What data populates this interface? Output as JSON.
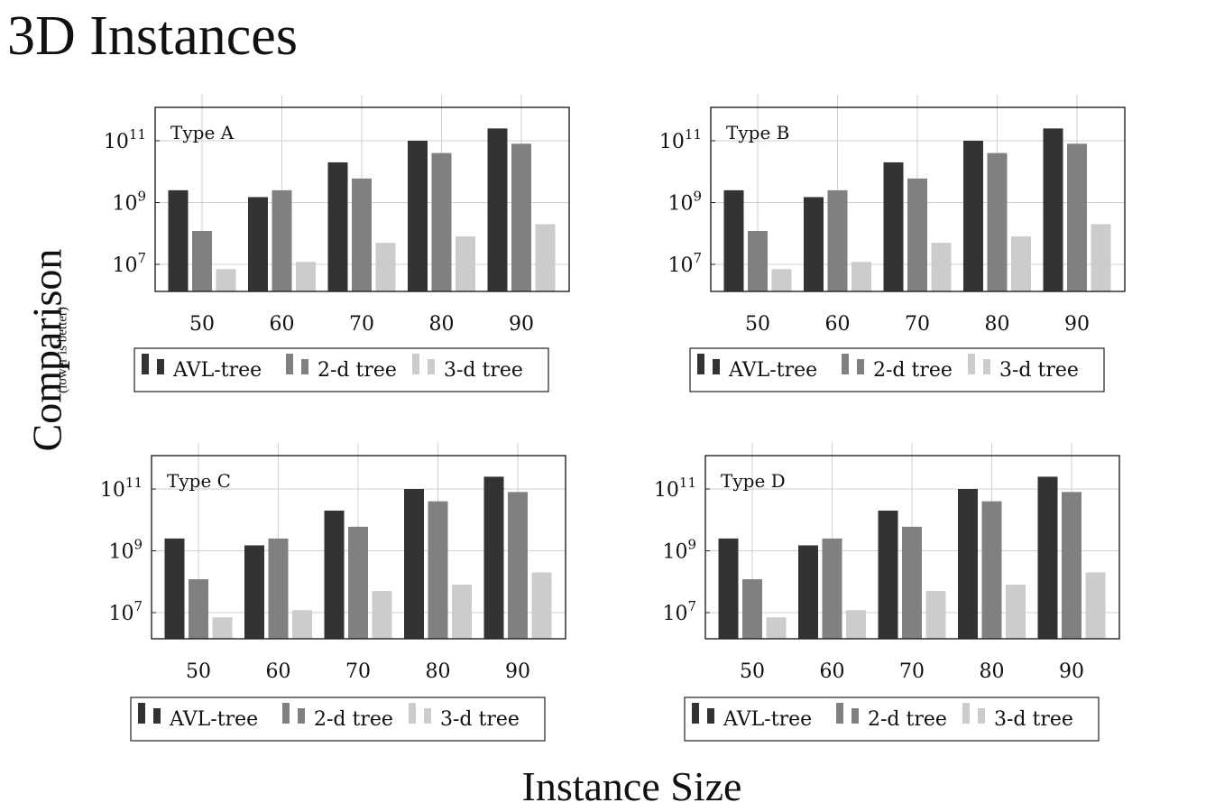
{
  "page": {
    "title": "3D Instances",
    "ylabel": "Comparison",
    "ylabel_note": "(lower is better)",
    "xlabel": "Instance Size"
  },
  "colors": {
    "AVL-tree": "#333333",
    "2-d tree": "#808080",
    "3-d tree": "#cccccc",
    "grid": "#cfcfcf",
    "frame": "#222222"
  },
  "chart_data": [
    {
      "type": "bar",
      "title": "Type A",
      "categories": [
        "50",
        "60",
        "70",
        "80",
        "90"
      ],
      "series": [
        {
          "name": "AVL-tree",
          "values": [
            2500000000.0,
            1500000000.0,
            20000000000.0,
            100000000000.0,
            250000000000.0
          ]
        },
        {
          "name": "2-d tree",
          "values": [
            120000000.0,
            2500000000.0,
            6000000000.0,
            40000000000.0,
            80000000000.0
          ]
        },
        {
          "name": "3-d tree",
          "values": [
            7000000.0,
            12000000.0,
            50000000.0,
            80000000.0,
            200000000.0
          ]
        }
      ],
      "yscale": "log",
      "ytick_labels": [
        "10^7",
        "10^9",
        "10^11"
      ],
      "grid": true,
      "legend": "below"
    },
    {
      "type": "bar",
      "title": "Type B",
      "categories": [
        "50",
        "60",
        "70",
        "80",
        "90"
      ],
      "series": [
        {
          "name": "AVL-tree",
          "values": [
            2500000000.0,
            1500000000.0,
            20000000000.0,
            100000000000.0,
            250000000000.0
          ]
        },
        {
          "name": "2-d tree",
          "values": [
            120000000.0,
            2500000000.0,
            6000000000.0,
            40000000000.0,
            80000000000.0
          ]
        },
        {
          "name": "3-d tree",
          "values": [
            7000000.0,
            12000000.0,
            50000000.0,
            80000000.0,
            200000000.0
          ]
        }
      ],
      "yscale": "log",
      "ytick_labels": [
        "10^7",
        "10^9",
        "10^11"
      ],
      "grid": true,
      "legend": "below"
    },
    {
      "type": "bar",
      "title": "Type C",
      "categories": [
        "50",
        "60",
        "70",
        "80",
        "90"
      ],
      "series": [
        {
          "name": "AVL-tree",
          "values": [
            2500000000.0,
            1500000000.0,
            20000000000.0,
            100000000000.0,
            250000000000.0
          ]
        },
        {
          "name": "2-d tree",
          "values": [
            120000000.0,
            2500000000.0,
            6000000000.0,
            40000000000.0,
            80000000000.0
          ]
        },
        {
          "name": "3-d tree",
          "values": [
            7000000.0,
            12000000.0,
            50000000.0,
            80000000.0,
            200000000.0
          ]
        }
      ],
      "yscale": "log",
      "ytick_labels": [
        "10^7",
        "10^9",
        "10^11"
      ],
      "grid": true,
      "legend": "below"
    },
    {
      "type": "bar",
      "title": "Type D",
      "categories": [
        "50",
        "60",
        "70",
        "80",
        "90"
      ],
      "series": [
        {
          "name": "AVL-tree",
          "values": [
            2500000000.0,
            1500000000.0,
            20000000000.0,
            100000000000.0,
            250000000000.0
          ]
        },
        {
          "name": "2-d tree",
          "values": [
            120000000.0,
            2500000000.0,
            6000000000.0,
            40000000000.0,
            80000000000.0
          ]
        },
        {
          "name": "3-d tree",
          "values": [
            7000000.0,
            12000000.0,
            50000000.0,
            80000000.0,
            200000000.0
          ]
        }
      ],
      "yscale": "log",
      "ytick_labels": [
        "10^7",
        "10^9",
        "10^11"
      ],
      "grid": true,
      "legend": "below"
    }
  ]
}
